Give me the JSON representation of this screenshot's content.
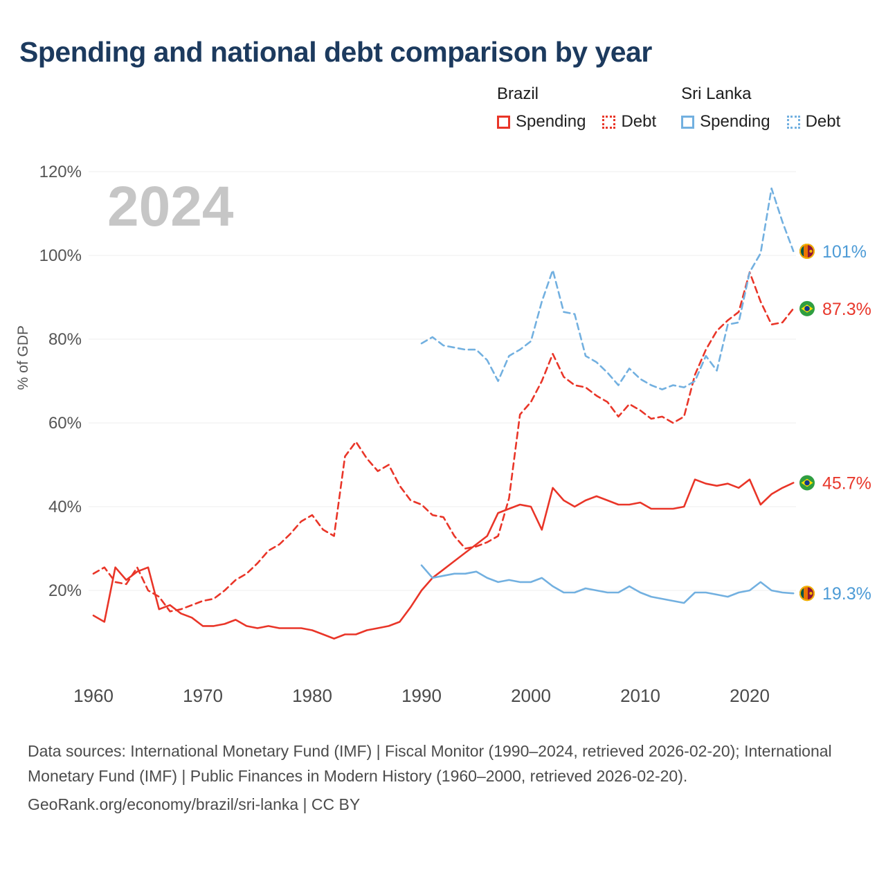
{
  "page": {
    "title": "Spending and national debt comparison by year",
    "watermark": "2024",
    "footer": {
      "sources": "Data sources: International Monetary Fund (IMF) | Fiscal Monitor (1990–2024, retrieved 2026-02-20); International Monetary Fund (IMF) | Public Finances in Modern History (1960–2000, retrieved 2026-02-20).",
      "attribution": "GeoRank.org/economy/brazil/sri-lanka | CC BY"
    }
  },
  "legend": {
    "groups": [
      {
        "label": "Brazil",
        "color": "#e93528",
        "items": [
          {
            "label": "Spending",
            "style": "solid"
          },
          {
            "label": "Debt",
            "style": "dashed"
          }
        ]
      },
      {
        "label": "Sri Lanka",
        "color": "#72b0e0",
        "items": [
          {
            "label": "Spending",
            "style": "solid"
          },
          {
            "label": "Debt",
            "style": "dashed"
          }
        ]
      }
    ]
  },
  "chart_data": {
    "type": "line",
    "title": "Spending and national debt comparison by year",
    "xlabel": "",
    "ylabel": "% of GDP",
    "ylim": [
      0,
      125
    ],
    "yticks": [
      20,
      40,
      60,
      80,
      100,
      120
    ],
    "xticks": [
      1960,
      1970,
      1980,
      1990,
      2000,
      2010,
      2020
    ],
    "grid": "horizontal",
    "legend_position": "top-right",
    "series": [
      {
        "name": "Brazil Debt",
        "country": "Brazil",
        "color": "#e93528",
        "label_color": "#e8382c",
        "dash": true,
        "flag": "brazil",
        "end_label": "87.3%",
        "x_start": 1960,
        "values": [
          24,
          25.5,
          22,
          21.5,
          25.5,
          20,
          18.5,
          15,
          15.5,
          16.5,
          17.5,
          18,
          20,
          22.5,
          24,
          26.5,
          29.5,
          31,
          33.5,
          36.5,
          38,
          34.5,
          33,
          52,
          55.5,
          51.5,
          48.5,
          50,
          45,
          41.5,
          40.5,
          38,
          37.5,
          33,
          30,
          30.5,
          31.5,
          33,
          42,
          62,
          65,
          70,
          76.5,
          71,
          69,
          68.5,
          66.5,
          65,
          61.5,
          64.5,
          63,
          61,
          61.5,
          60,
          61.5,
          71.5,
          77.5,
          82,
          84.5,
          86.5,
          96,
          89,
          83.5,
          84,
          87.3
        ]
      },
      {
        "name": "Brazil Spending",
        "country": "Brazil",
        "color": "#e93528",
        "label_color": "#e8382c",
        "dash": false,
        "flag": "brazil",
        "end_label": "45.7%",
        "x_start": 1960,
        "values": [
          14,
          12.5,
          25.5,
          22.5,
          24.5,
          25.5,
          15.5,
          16.5,
          14.5,
          13.5,
          11.5,
          11.5,
          12,
          13,
          11.5,
          11,
          11.5,
          11,
          11,
          11,
          10.5,
          9.5,
          8.5,
          9.5,
          9.5,
          10.5,
          11,
          11.5,
          12.5,
          16,
          20,
          23,
          25,
          27,
          29,
          31,
          33,
          38.5,
          39.5,
          40.5,
          40,
          34.5,
          44.5,
          41.5,
          40,
          41.5,
          42.5,
          41.5,
          40.5,
          40.5,
          41,
          39.5,
          39.5,
          39.5,
          40,
          46.5,
          45.5,
          45,
          45.5,
          44.5,
          46.5,
          40.5,
          43,
          44.5,
          45.7
        ]
      },
      {
        "name": "Sri Lanka Debt",
        "country": "Sri Lanka",
        "color": "#72b0e0",
        "label_color": "#4d9bd6",
        "dash": true,
        "flag": "sri-lanka",
        "end_label": "101%",
        "x_start": 1990,
        "values": [
          79,
          80.5,
          78.5,
          78,
          77.5,
          77.5,
          75,
          70,
          76,
          77.5,
          79.5,
          89,
          96.5,
          86.5,
          86,
          76,
          74.5,
          72,
          69,
          73,
          70.5,
          69,
          68,
          69,
          68.5,
          70,
          76,
          72.5,
          83.5,
          84,
          96,
          100.5,
          116,
          108,
          101
        ]
      },
      {
        "name": "Sri Lanka Spending",
        "country": "Sri Lanka",
        "color": "#72b0e0",
        "label_color": "#4d9bd6",
        "dash": false,
        "flag": "sri-lanka",
        "end_label": "19.3%",
        "x_start": 1990,
        "values": [
          26,
          23,
          23.5,
          24,
          24,
          24.5,
          23,
          22,
          22.5,
          22,
          22,
          23,
          21,
          19.5,
          19.5,
          20.5,
          20,
          19.5,
          19.5,
          21,
          19.5,
          18.5,
          18,
          17.5,
          17,
          19.5,
          19.5,
          19,
          18.5,
          19.5,
          20,
          22,
          20,
          19.5,
          19.3
        ]
      }
    ]
  }
}
